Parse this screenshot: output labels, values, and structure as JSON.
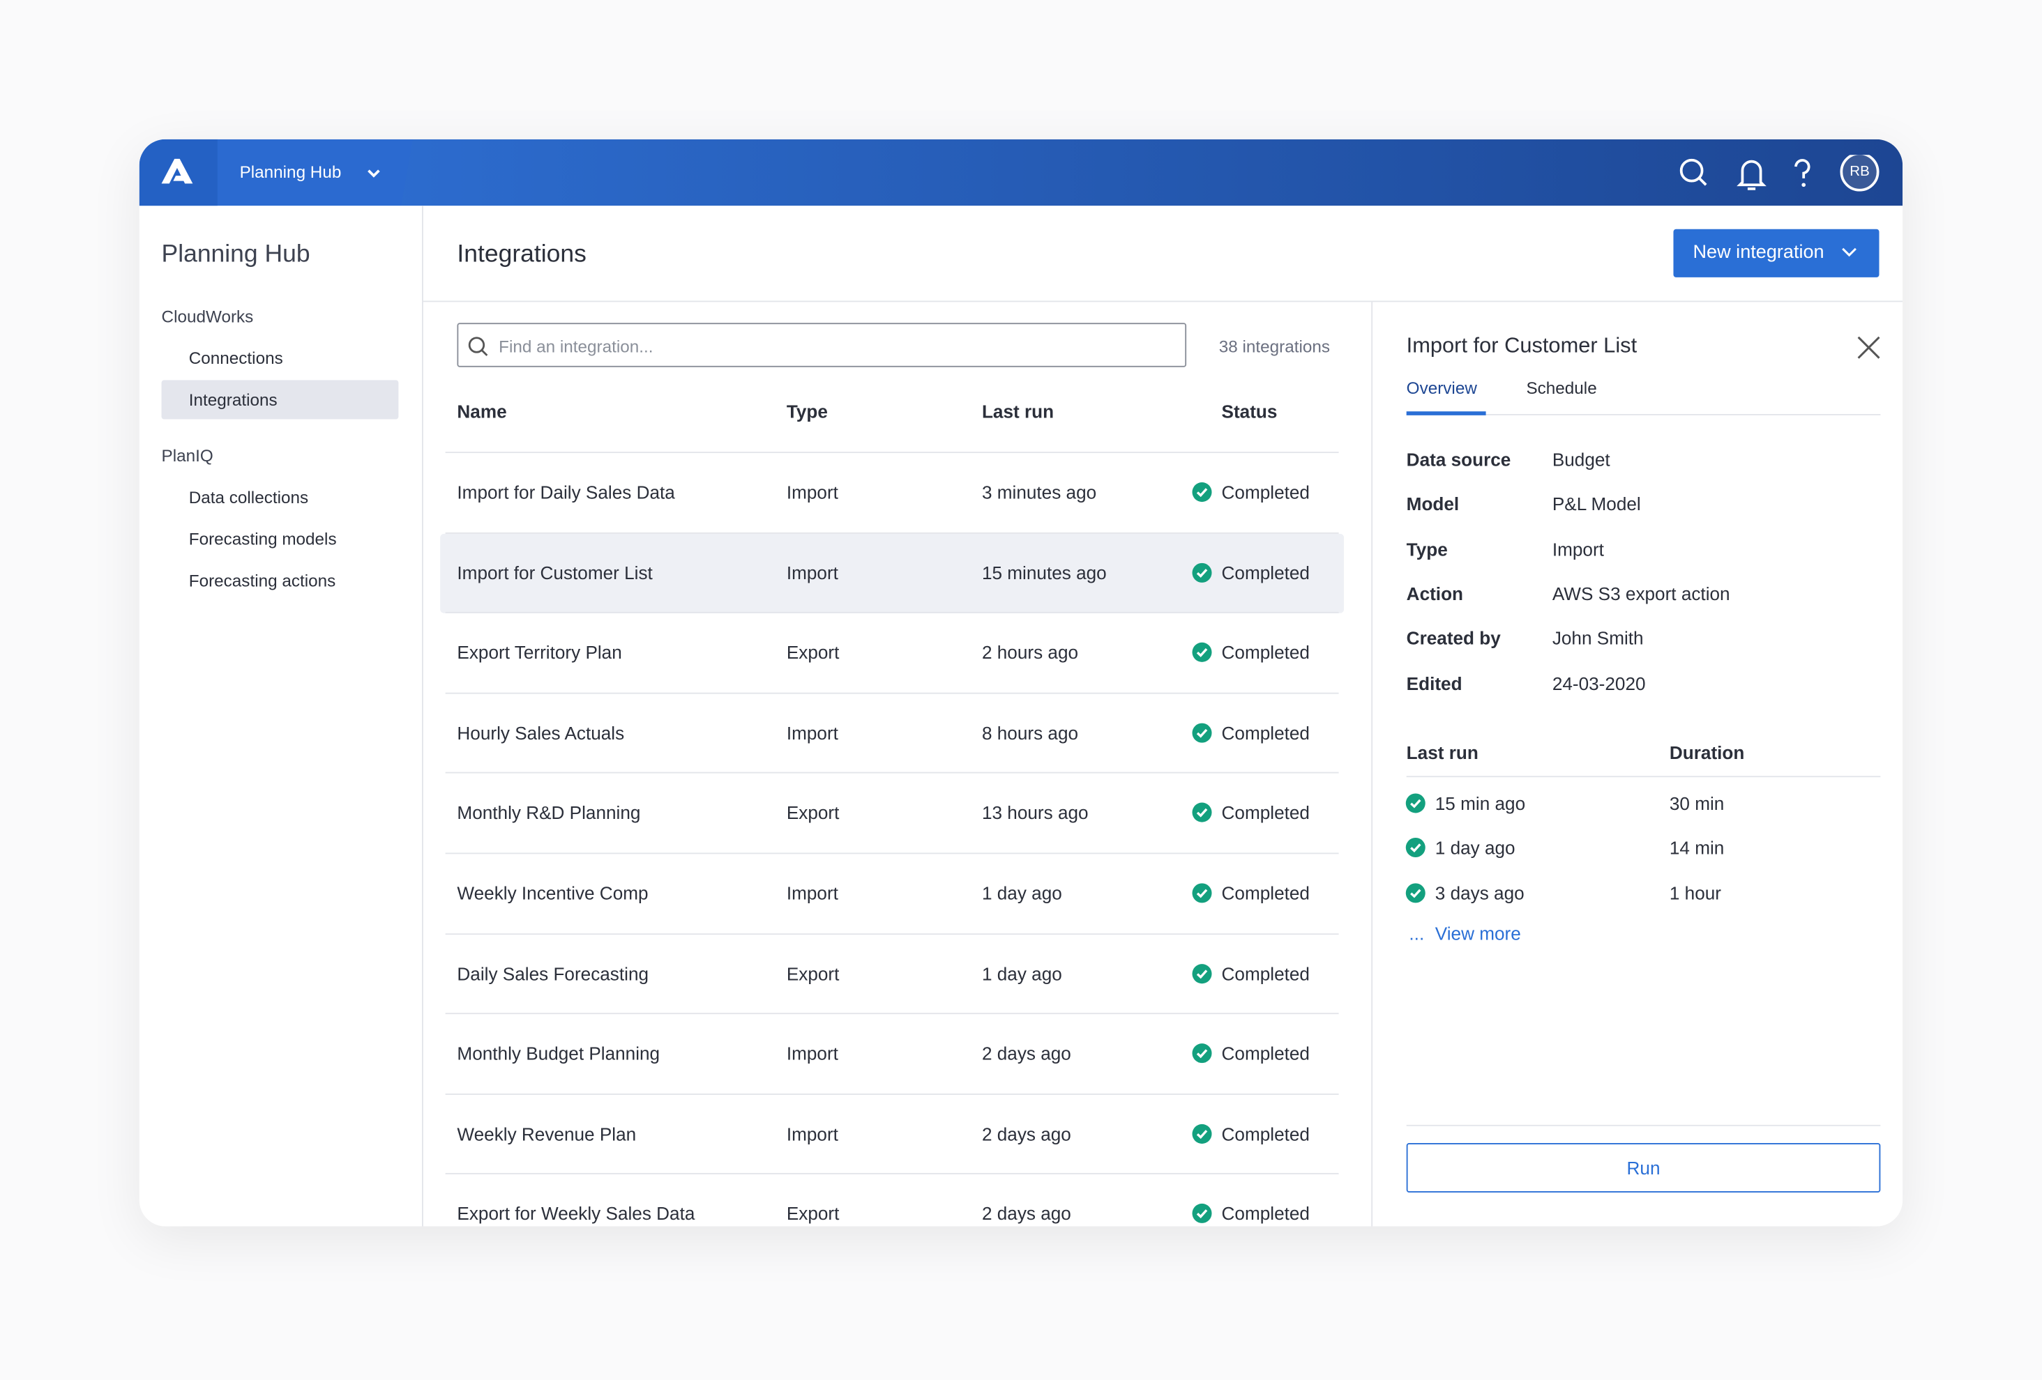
{
  "header": {
    "app": "Planning Hub",
    "avatar": "RB"
  },
  "sidebar": {
    "title": "Planning Hub",
    "groups": [
      {
        "label": "CloudWorks",
        "items": [
          "Connections",
          "Integrations"
        ]
      },
      {
        "label": "PlanIQ",
        "items": [
          "Data collections",
          "Forecasting models",
          "Forecasting actions"
        ]
      }
    ]
  },
  "main": {
    "title": "Integrations",
    "button": "New integration",
    "search_placeholder": "Find an integration...",
    "count": "38 integrations",
    "columns": [
      "Name",
      "Type",
      "Last run",
      "Status"
    ],
    "rows": [
      [
        "Import for Daily Sales Data",
        "Import",
        "3 minutes ago",
        "Completed"
      ],
      [
        "Import for Customer List",
        "Import",
        "15 minutes ago",
        "Completed"
      ],
      [
        "Export Territory Plan",
        "Export",
        "2 hours ago",
        "Completed"
      ],
      [
        "Hourly Sales Actuals",
        "Import",
        "8 hours ago",
        "Completed"
      ],
      [
        "Monthly R&D Planning",
        "Export",
        "13 hours ago",
        "Completed"
      ],
      [
        "Weekly Incentive Comp",
        "Import",
        "1 day ago",
        "Completed"
      ],
      [
        "Daily Sales Forecasting",
        "Export",
        "1 day ago",
        "Completed"
      ],
      [
        "Monthly Budget Planning",
        "Import",
        "2 days ago",
        "Completed"
      ],
      [
        "Weekly Revenue Plan",
        "Import",
        "2 days ago",
        "Completed"
      ],
      [
        "Export for Weekly Sales Data",
        "Export",
        "2 days ago",
        "Completed"
      ]
    ]
  },
  "detail": {
    "title": "Import for Customer List",
    "tabs": [
      "Overview",
      "Schedule"
    ],
    "fields": [
      [
        "Data source",
        "Budget"
      ],
      [
        "Model",
        "P&L Model"
      ],
      [
        "Type",
        "Import"
      ],
      [
        "Action",
        "AWS S3 export action"
      ],
      [
        "Created by",
        "John Smith"
      ],
      [
        "Edited",
        "24-03-2020"
      ]
    ],
    "runs_columns": [
      "Last run",
      "Duration"
    ],
    "runs": [
      [
        "15 min ago",
        "30 min"
      ],
      [
        "1 day ago",
        "14 min"
      ],
      [
        "3 days ago",
        "1 hour"
      ]
    ],
    "view_more_prefix": "...",
    "view_more": "View more",
    "run_button": "Run"
  }
}
